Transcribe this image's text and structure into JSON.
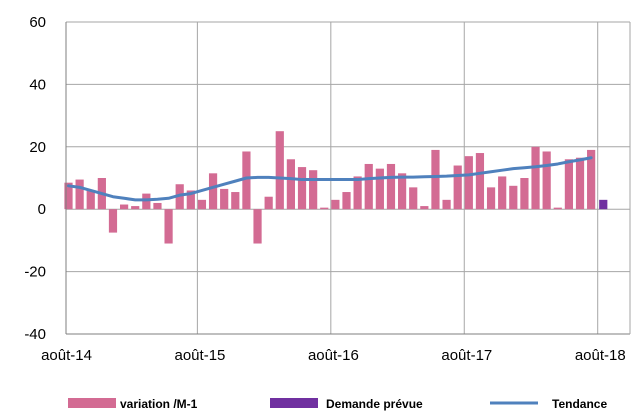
{
  "chart_data": {
    "type": "bar",
    "y_ticks": [
      -40,
      -20,
      0,
      20,
      40,
      60
    ],
    "ylim": [
      -40,
      60
    ],
    "x_ticks": [
      {
        "label": "août-14",
        "index": 0
      },
      {
        "label": "août-15",
        "index": 12
      },
      {
        "label": "août-16",
        "index": 24
      },
      {
        "label": "août-17",
        "index": 36
      },
      {
        "label": "août-18",
        "index": 48
      }
    ],
    "grid": true,
    "legend_position": "bottom",
    "series": [
      {
        "name": "variation /M-1",
        "type": "bar",
        "color": "#d36b93",
        "values": [
          8.5,
          9.5,
          6,
          10,
          -7.5,
          1.5,
          1,
          5,
          2,
          -11,
          8,
          6,
          3,
          11.5,
          6.5,
          5.5,
          18.5,
          -11,
          4,
          25,
          16,
          13.5,
          12.5,
          0.5,
          3,
          5.5,
          10.5,
          14.5,
          13,
          14.5,
          11.5,
          7,
          1,
          19,
          3,
          14,
          17,
          18,
          7,
          10.5,
          7.5,
          10,
          20,
          18.5,
          0.5,
          16,
          16.5,
          19
        ]
      },
      {
        "name": "Demande prévue",
        "type": "bar",
        "color": "#7030a0",
        "values": [
          3
        ]
      },
      {
        "name": "Tendance",
        "type": "line",
        "color": "#4f81bd",
        "values": [
          7.5,
          7,
          6,
          5,
          4,
          3.5,
          3,
          3,
          3.2,
          3.5,
          4.5,
          5,
          6,
          7,
          8,
          9,
          10,
          10.2,
          10.2,
          10,
          9.8,
          9.5,
          9.5,
          9.5,
          9.5,
          9.5,
          9.5,
          9.8,
          10,
          10.2,
          10.3,
          10.3,
          10.4,
          10.5,
          10.6,
          10.8,
          11,
          11.5,
          12,
          12.5,
          13,
          13.3,
          13.6,
          14,
          14.5,
          15.2,
          15.8,
          16.5
        ]
      }
    ]
  },
  "legend": {
    "items": [
      {
        "label": "variation /M-1",
        "color": "#d36b93",
        "shape": "rect"
      },
      {
        "label": "Demande prévue",
        "color": "#7030a0",
        "shape": "rect"
      },
      {
        "label": "Tendance",
        "color": "#4f81bd",
        "shape": "line"
      }
    ]
  }
}
